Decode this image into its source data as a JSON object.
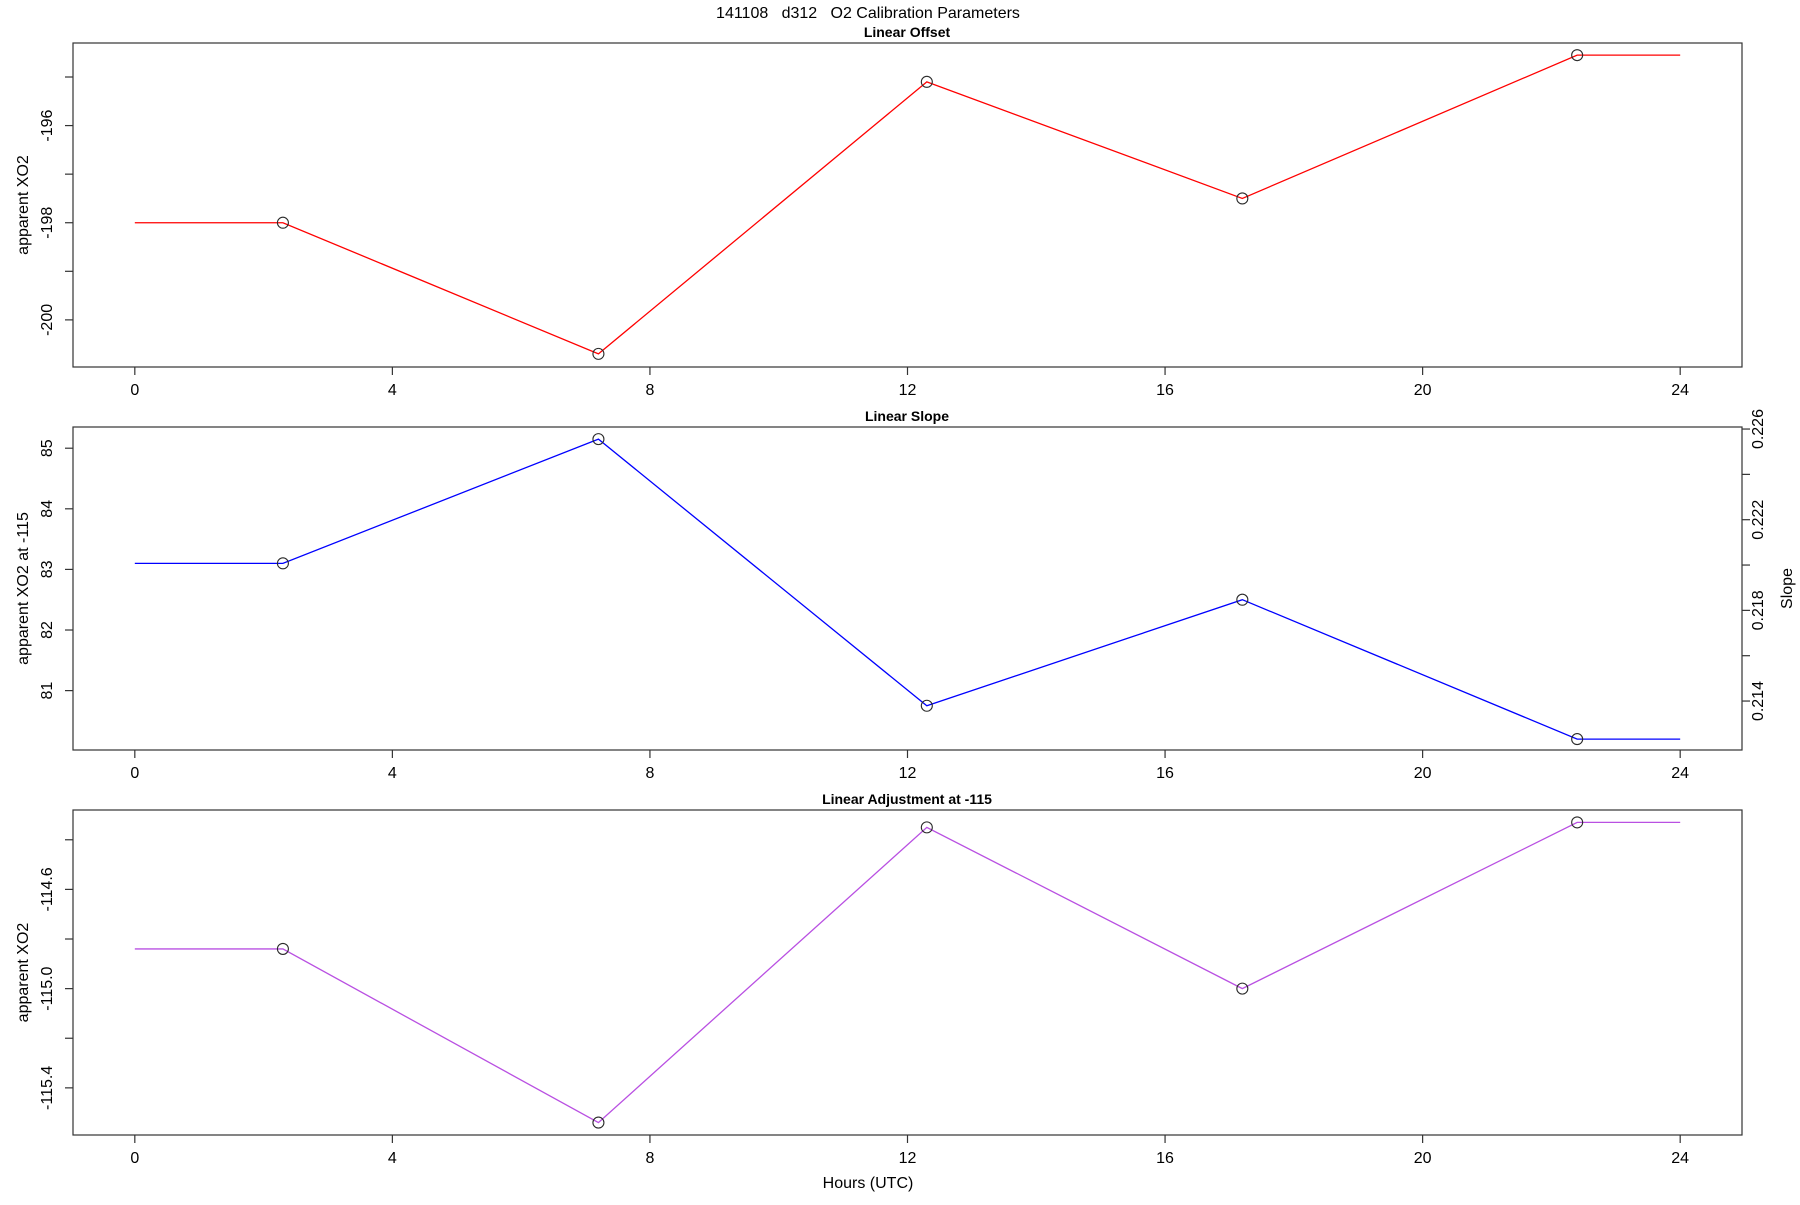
{
  "main_title": "141108   d312   O2 Calibration Parameters",
  "xlabel": "Hours (UTC)",
  "marker": {
    "shape": "open-circle",
    "color": "#2a2a2a"
  },
  "chart_data": [
    {
      "type": "line",
      "title": "Linear Offset",
      "series_color": "#ff0000",
      "ylabel": "apparent XO2",
      "x": [
        0,
        2.3,
        7.2,
        12.3,
        17.2,
        22.4,
        24
      ],
      "y": [
        -198.0,
        -198.0,
        -200.7,
        -195.1,
        -197.5,
        -194.55,
        -194.55
      ],
      "marker_points": [
        1,
        2,
        3,
        4,
        5
      ],
      "xlim": [
        -0.96,
        24.96
      ],
      "ylim": [
        -200.97,
        -194.3
      ],
      "grid": false,
      "xticks": [
        {
          "v": 0,
          "label": "0"
        },
        {
          "v": 4,
          "label": "4"
        },
        {
          "v": 8,
          "label": "8"
        },
        {
          "v": 12,
          "label": "12"
        },
        {
          "v": 16,
          "label": "16"
        },
        {
          "v": 20,
          "label": "20"
        },
        {
          "v": 24,
          "label": "24"
        }
      ],
      "yticks": [
        {
          "v": -195,
          "label": ""
        },
        {
          "v": -196,
          "label": "-196"
        },
        {
          "v": -197,
          "label": ""
        },
        {
          "v": -198,
          "label": "-198"
        },
        {
          "v": -199,
          "label": ""
        },
        {
          "v": -200,
          "label": "-200"
        }
      ]
    },
    {
      "type": "line",
      "title": "Linear Slope",
      "series_color": "#0000ff",
      "ylabel": "apparent XO2 at -115",
      "x": [
        0,
        2.3,
        7.2,
        12.3,
        17.2,
        22.4,
        24
      ],
      "y": [
        83.1,
        83.1,
        85.15,
        80.75,
        82.5,
        80.2,
        80.2
      ],
      "marker_points": [
        1,
        2,
        3,
        4,
        5
      ],
      "xlim": [
        -0.96,
        24.96
      ],
      "ylim": [
        80.02,
        85.35
      ],
      "grid": false,
      "xticks": [
        {
          "v": 0,
          "label": "0"
        },
        {
          "v": 4,
          "label": "4"
        },
        {
          "v": 8,
          "label": "8"
        },
        {
          "v": 12,
          "label": "12"
        },
        {
          "v": 16,
          "label": "16"
        },
        {
          "v": 20,
          "label": "20"
        },
        {
          "v": 24,
          "label": "24"
        }
      ],
      "yticks": [
        {
          "v": 81,
          "label": "81"
        },
        {
          "v": 82,
          "label": "82"
        },
        {
          "v": 83,
          "label": "83"
        },
        {
          "v": 84,
          "label": "84"
        },
        {
          "v": 85,
          "label": "85"
        }
      ],
      "right_axis": {
        "label": "Slope",
        "ylim": [
          0.21184,
          0.22609
        ],
        "ticks": [
          {
            "v": 0.214,
            "label": "0.214"
          },
          {
            "v": 0.216,
            "label": ""
          },
          {
            "v": 0.218,
            "label": "0.218"
          },
          {
            "v": 0.22,
            "label": ""
          },
          {
            "v": 0.222,
            "label": "0.222"
          },
          {
            "v": 0.224,
            "label": ""
          },
          {
            "v": 0.226,
            "label": "0.226"
          }
        ]
      }
    },
    {
      "type": "line",
      "title": "Linear Adjustment at -115",
      "series_color": "#b950e2",
      "ylabel": "apparent XO2",
      "x": [
        0,
        2.3,
        7.2,
        12.3,
        17.2,
        22.4,
        24
      ],
      "y": [
        -114.84,
        -114.84,
        -115.54,
        -114.35,
        -115.0,
        -114.33,
        -114.33
      ],
      "marker_points": [
        1,
        2,
        3,
        4,
        5
      ],
      "xlim": [
        -0.96,
        24.96
      ],
      "ylim": [
        -115.59,
        -114.28
      ],
      "grid": false,
      "xticks": [
        {
          "v": 0,
          "label": "0"
        },
        {
          "v": 4,
          "label": "4"
        },
        {
          "v": 8,
          "label": "8"
        },
        {
          "v": 12,
          "label": "12"
        },
        {
          "v": 16,
          "label": "16"
        },
        {
          "v": 20,
          "label": "20"
        },
        {
          "v": 24,
          "label": "24"
        }
      ],
      "yticks": [
        {
          "v": -114.4,
          "label": ""
        },
        {
          "v": -114.6,
          "label": "-114.6"
        },
        {
          "v": -114.8,
          "label": ""
        },
        {
          "v": -115.0,
          "label": "-115.0"
        },
        {
          "v": -115.2,
          "label": ""
        },
        {
          "v": -115.4,
          "label": "-115.4"
        }
      ]
    }
  ]
}
